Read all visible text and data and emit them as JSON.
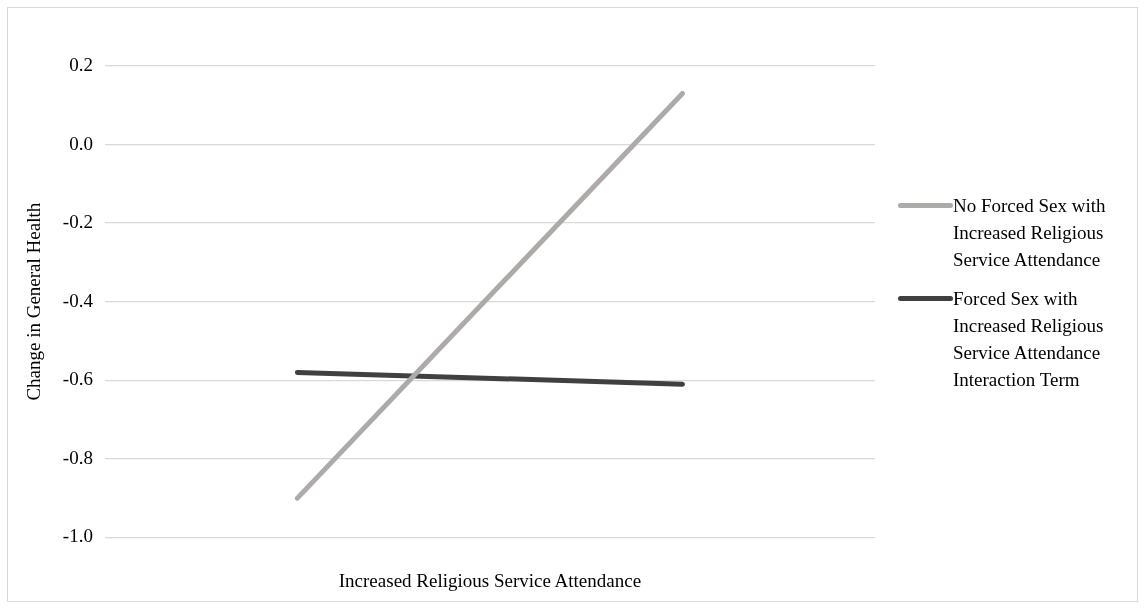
{
  "chart_data": {
    "type": "line",
    "xlabel": "Increased Religious Service Attendance",
    "ylabel": "Change in General Health",
    "categories": [
      null,
      null
    ],
    "series": [
      {
        "name": "No Forced Sex with Increased Religious Service Attendance",
        "color": "#aeaaaa",
        "values": [
          -0.9,
          0.13
        ]
      },
      {
        "name": "Forced Sex with Increased Religious Service Attendance Interaction Term",
        "color": "#404040",
        "values": [
          -0.58,
          -0.61
        ]
      }
    ],
    "ylim": [
      -1.0,
      0.2
    ],
    "yticks": [
      {
        "value": -1.0,
        "label": "-1.0"
      },
      {
        "value": -0.8,
        "label": "-0.8"
      },
      {
        "value": -0.6,
        "label": "-0.6"
      },
      {
        "value": -0.4,
        "label": "-0.4"
      },
      {
        "value": -0.2,
        "label": "-0.2"
      },
      {
        "value": 0,
        "label": "0.0"
      },
      {
        "value": 0.2,
        "label": "0.2"
      }
    ],
    "grid": "y",
    "legend": "right",
    "marker": "none",
    "line_style": "solid"
  }
}
